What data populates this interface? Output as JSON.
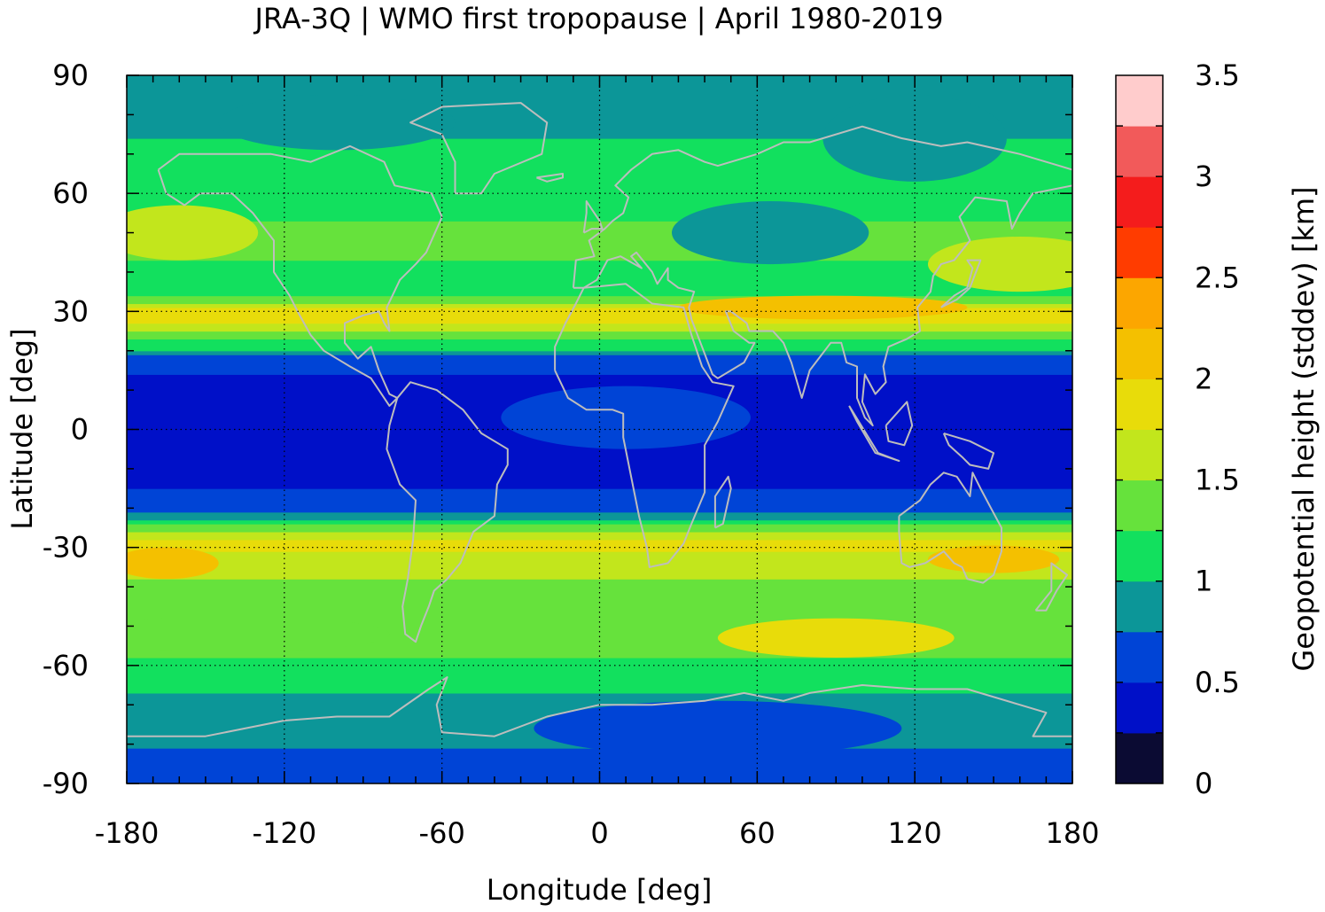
{
  "chart_data": {
    "type": "heatmap",
    "title": "JRA-3Q | WMO first tropopause | April 1980-2019",
    "xlabel": "Longitude [deg]",
    "ylabel": "Latitude [deg]",
    "colorbar_label": "Geopotential height (stddev) [km]",
    "xlim": [
      -180,
      180
    ],
    "ylim": [
      -90,
      90
    ],
    "x_ticks": [
      -180,
      -120,
      -60,
      0,
      60,
      120,
      180
    ],
    "y_ticks": [
      90,
      60,
      30,
      0,
      -30,
      -60,
      -90
    ],
    "x_tick_labels": [
      "-180",
      "-120",
      "-60",
      "0",
      "60",
      "120",
      "180"
    ],
    "y_tick_labels": [
      "90",
      "60",
      "30",
      "0",
      "-30",
      "-60",
      "-90"
    ],
    "grid": true,
    "colorbar": {
      "range": [
        0,
        3.5
      ],
      "tick_values": [
        0,
        0.5,
        1,
        1.5,
        2,
        2.5,
        3,
        3.5
      ],
      "tick_labels": [
        "0",
        "0.5",
        "1",
        "1.5",
        "2",
        "2.5",
        "3",
        "3.5"
      ],
      "levels": [
        {
          "min": 0.0,
          "max": 0.25,
          "color": "#0b0b33"
        },
        {
          "min": 0.25,
          "max": 0.5,
          "color": "#0010c8"
        },
        {
          "min": 0.5,
          "max": 0.75,
          "color": "#0044d6"
        },
        {
          "min": 0.75,
          "max": 1.0,
          "color": "#0c9698"
        },
        {
          "min": 1.0,
          "max": 1.25,
          "color": "#12e05e"
        },
        {
          "min": 1.25,
          "max": 1.5,
          "color": "#66e23c"
        },
        {
          "min": 1.5,
          "max": 1.75,
          "color": "#c2e61c"
        },
        {
          "min": 1.75,
          "max": 2.0,
          "color": "#e8dc0a"
        },
        {
          "min": 2.0,
          "max": 2.25,
          "color": "#f4c000"
        },
        {
          "min": 2.25,
          "max": 2.5,
          "color": "#fca600"
        },
        {
          "min": 2.5,
          "max": 2.75,
          "color": "#ff3c00"
        },
        {
          "min": 2.75,
          "max": 3.0,
          "color": "#f41c1c"
        },
        {
          "min": 3.0,
          "max": 3.25,
          "color": "#f25a5a"
        },
        {
          "min": 3.25,
          "max": 3.5,
          "color": "#ffcccc"
        }
      ]
    },
    "zonal_mean_profile": {
      "lat": [
        -90,
        -82,
        -76,
        -70,
        -66,
        -60,
        -54,
        -48,
        -42,
        -36,
        -32,
        -29,
        -27,
        -24,
        -20,
        -10,
        0,
        10,
        18,
        20,
        22,
        24,
        26,
        28,
        30,
        33,
        36,
        40,
        48,
        56,
        66,
        72,
        76,
        90
      ],
      "value": [
        0.6,
        0.7,
        0.9,
        0.9,
        1.05,
        1.2,
        1.35,
        1.4,
        1.4,
        1.55,
        1.7,
        1.85,
        1.6,
        1.2,
        0.6,
        0.4,
        0.4,
        0.4,
        0.6,
        0.95,
        1.15,
        1.35,
        1.6,
        1.85,
        1.85,
        1.3,
        1.15,
        1.2,
        1.35,
        1.2,
        1.15,
        1.1,
        0.9,
        0.85
      ]
    },
    "anomalies": [
      {
        "lon": 65,
        "lat": 50,
        "dlon": 75,
        "dlat": 16,
        "value": 0.9
      },
      {
        "lon": 120,
        "lat": 74,
        "dlon": 70,
        "dlat": 22,
        "value": 0.9
      },
      {
        "lon": -100,
        "lat": 78,
        "dlon": 90,
        "dlat": 14,
        "value": 0.9
      },
      {
        "lon": 10,
        "lat": 3,
        "dlon": 95,
        "dlat": 16,
        "value": 0.6
      },
      {
        "lon": 78,
        "lat": 31,
        "dlon": 50,
        "dlat": 3.5,
        "value": 2.8
      },
      {
        "lon": 85,
        "lat": 31,
        "dlon": 110,
        "dlat": 6,
        "value": 2.1
      },
      {
        "lon": -160,
        "lat": 50,
        "dlon": 60,
        "dlat": 14,
        "value": 1.6
      },
      {
        "lon": 160,
        "lat": 42,
        "dlon": 70,
        "dlat": 14,
        "value": 1.6
      },
      {
        "lon": -165,
        "lat": -34,
        "dlon": 40,
        "dlat": 8,
        "value": 2.0
      },
      {
        "lon": 150,
        "lat": -33,
        "dlon": 50,
        "dlat": 7,
        "value": 2.0
      },
      {
        "lon": 90,
        "lat": -53,
        "dlon": 90,
        "dlat": 10,
        "value": 1.75
      },
      {
        "lon": -140,
        "lat": -52,
        "dlon": 120,
        "dlat": 9,
        "value": 1.4
      },
      {
        "lon": 45,
        "lat": -76,
        "dlon": 140,
        "dlat": 14,
        "value": 0.6
      }
    ]
  }
}
